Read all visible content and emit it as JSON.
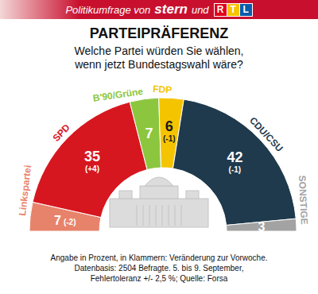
{
  "header": {
    "text": "Politikumfrage von",
    "brand_1": "stern",
    "connector": "und",
    "brand_2": "RTL"
  },
  "chart_data": {
    "type": "pie",
    "title": "PARTEIPRÄFERENZ",
    "subtitle": [
      "Welche Partei würden Sie wählen,",
      "wenn jetzt Bundestagswahl wäre?"
    ],
    "categories": [
      "Linkspartei",
      "SPD",
      "B'90/Grüne",
      "FDP",
      "CDU/CSU",
      "SONSTIGE"
    ],
    "values": [
      7,
      35,
      7,
      6,
      42,
      3
    ],
    "colors": [
      "#e8836b",
      "#d7171f",
      "#8cc63f",
      "#f5c400",
      "#1f3a4d",
      "#a3a3a3"
    ],
    "changes": [
      -2,
      4,
      null,
      -1,
      -1,
      null
    ],
    "change_labels": [
      "(-2)",
      "(+4)",
      null,
      "(-1)",
      "(-1)",
      null
    ],
    "data_labels": true
  },
  "footer": [
    "Angabe in Prozent, in Klammern: Veränderung zur Vorwoche.",
    "Datenbasis: 2504 Befragte. 5. bis 9. September,",
    "Fehlertoleranz +/- 2,5 %; Quelle: Forsa"
  ]
}
